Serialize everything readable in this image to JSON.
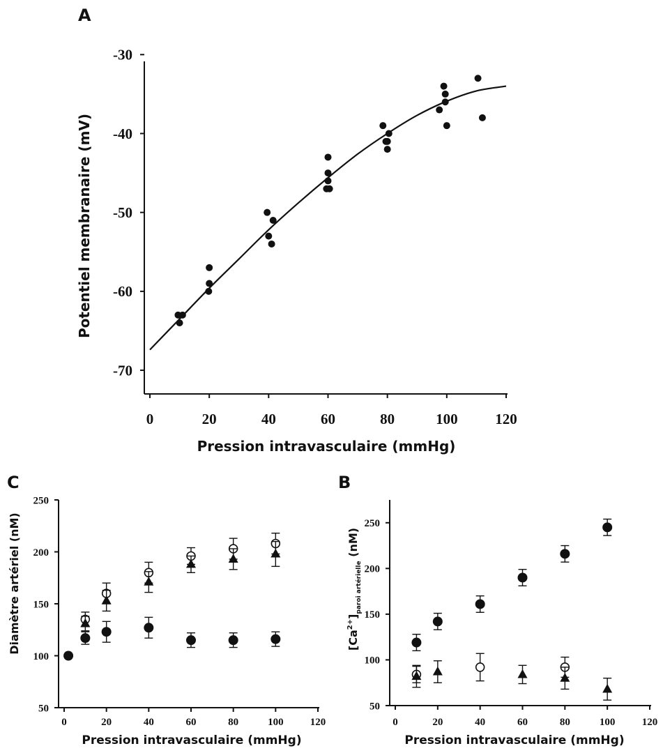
{
  "chart_data": [
    {
      "panel": "A",
      "type": "scatter",
      "xlabel": "Pression intravasculaire (mmHg)",
      "ylabel": "Potentiel membranaire (mV)",
      "xlim": [
        0,
        120
      ],
      "ylim": [
        -73,
        -29
      ],
      "xticks": [
        0,
        20,
        40,
        60,
        80,
        100,
        120
      ],
      "yticks": [
        -70,
        -60,
        -50,
        -40,
        -30
      ],
      "grid": false,
      "points": [
        [
          10,
          -64
        ],
        [
          11,
          -63
        ],
        [
          9.5,
          -63
        ],
        [
          20,
          -57
        ],
        [
          20,
          -59
        ],
        [
          19.8,
          -60
        ],
        [
          39.5,
          -50
        ],
        [
          40,
          -53
        ],
        [
          41.5,
          -51
        ],
        [
          41,
          -54
        ],
        [
          60,
          -43
        ],
        [
          60,
          -45
        ],
        [
          60,
          -46
        ],
        [
          59.5,
          -47
        ],
        [
          60.5,
          -47
        ],
        [
          78.5,
          -39
        ],
        [
          80,
          -41
        ],
        [
          80.5,
          -40
        ],
        [
          80,
          -42
        ],
        [
          79.5,
          -41
        ],
        [
          99,
          -34
        ],
        [
          99.5,
          -35
        ],
        [
          99.5,
          -36
        ],
        [
          97.5,
          -37
        ],
        [
          100,
          -39
        ],
        [
          110.5,
          -33
        ],
        [
          112,
          -38
        ]
      ],
      "fit_curve": [
        [
          0,
          -67.4
        ],
        [
          10,
          -63.5
        ],
        [
          20,
          -59.6
        ],
        [
          30,
          -55.9
        ],
        [
          40,
          -52.2
        ],
        [
          50,
          -48.8
        ],
        [
          60,
          -45.6
        ],
        [
          70,
          -42.6
        ],
        [
          80,
          -40.0
        ],
        [
          90,
          -37.7
        ],
        [
          100,
          -35.9
        ],
        [
          110,
          -34.6
        ],
        [
          120,
          -34.0
        ]
      ]
    },
    {
      "panel": "C",
      "type": "scatter",
      "xlabel": "Pression intravasculaire (mmHg)",
      "ylabel": "Diamètre artériel (nM)",
      "xlim": [
        0,
        120
      ],
      "ylim": [
        50,
        250
      ],
      "xticks": [
        0,
        20,
        40,
        60,
        80,
        100,
        120
      ],
      "yticks": [
        50,
        100,
        150,
        200,
        250
      ],
      "grid": false,
      "series": [
        {
          "marker": "open-circle",
          "x": [
            10,
            20,
            40,
            60,
            80,
            100
          ],
          "y": [
            135,
            160,
            180,
            196,
            203,
            208
          ],
          "err": [
            7,
            10,
            10,
            8,
            10,
            10
          ]
        },
        {
          "marker": "filled-triangle",
          "x": [
            10,
            20,
            40,
            60,
            80,
            100
          ],
          "y": [
            131,
            153,
            171,
            188,
            193,
            198
          ],
          "err": [
            7,
            10,
            10,
            8,
            10,
            12
          ]
        },
        {
          "marker": "filled-circle",
          "x": [
            2,
            10,
            20,
            40,
            60,
            80,
            100
          ],
          "y": [
            100,
            117,
            123,
            127,
            115,
            115,
            116
          ],
          "err": [
            0,
            6,
            10,
            10,
            7,
            7,
            7
          ]
        }
      ]
    },
    {
      "panel": "B",
      "type": "scatter",
      "xlabel": "Pression intravasculaire (mmHg)",
      "ylabel": "[Ca2+]paroi artérielle (nM)",
      "ylabel_main": "[Ca",
      "ylabel_sup": "2+",
      "ylabel_close": "]",
      "ylabel_sub": "paroi artérielle",
      "ylabel_unit": " (nM)",
      "xlim": [
        0,
        120
      ],
      "ylim": [
        50,
        275
      ],
      "xticks": [
        0,
        20,
        40,
        60,
        80,
        100,
        120
      ],
      "yticks": [
        50,
        100,
        150,
        200,
        250
      ],
      "grid": false,
      "series": [
        {
          "marker": "filled-circle",
          "x": [
            10,
            20,
            40,
            60,
            80,
            100
          ],
          "y": [
            119,
            142,
            161,
            190,
            216,
            245
          ],
          "err": [
            9,
            9,
            9,
            9,
            9,
            9
          ]
        },
        {
          "marker": "open-circle",
          "x": [
            10,
            40,
            80
          ],
          "y": [
            84,
            92,
            92
          ],
          "err": [
            9,
            15,
            11
          ]
        },
        {
          "marker": "filled-triangle",
          "x": [
            10,
            20,
            60,
            80,
            100
          ],
          "y": [
            82,
            87,
            84,
            80,
            68
          ],
          "err": [
            12,
            12,
            10,
            12,
            12
          ]
        }
      ]
    }
  ],
  "labels": {
    "panel_a": "A",
    "panel_b": "B",
    "panel_c": "C"
  }
}
